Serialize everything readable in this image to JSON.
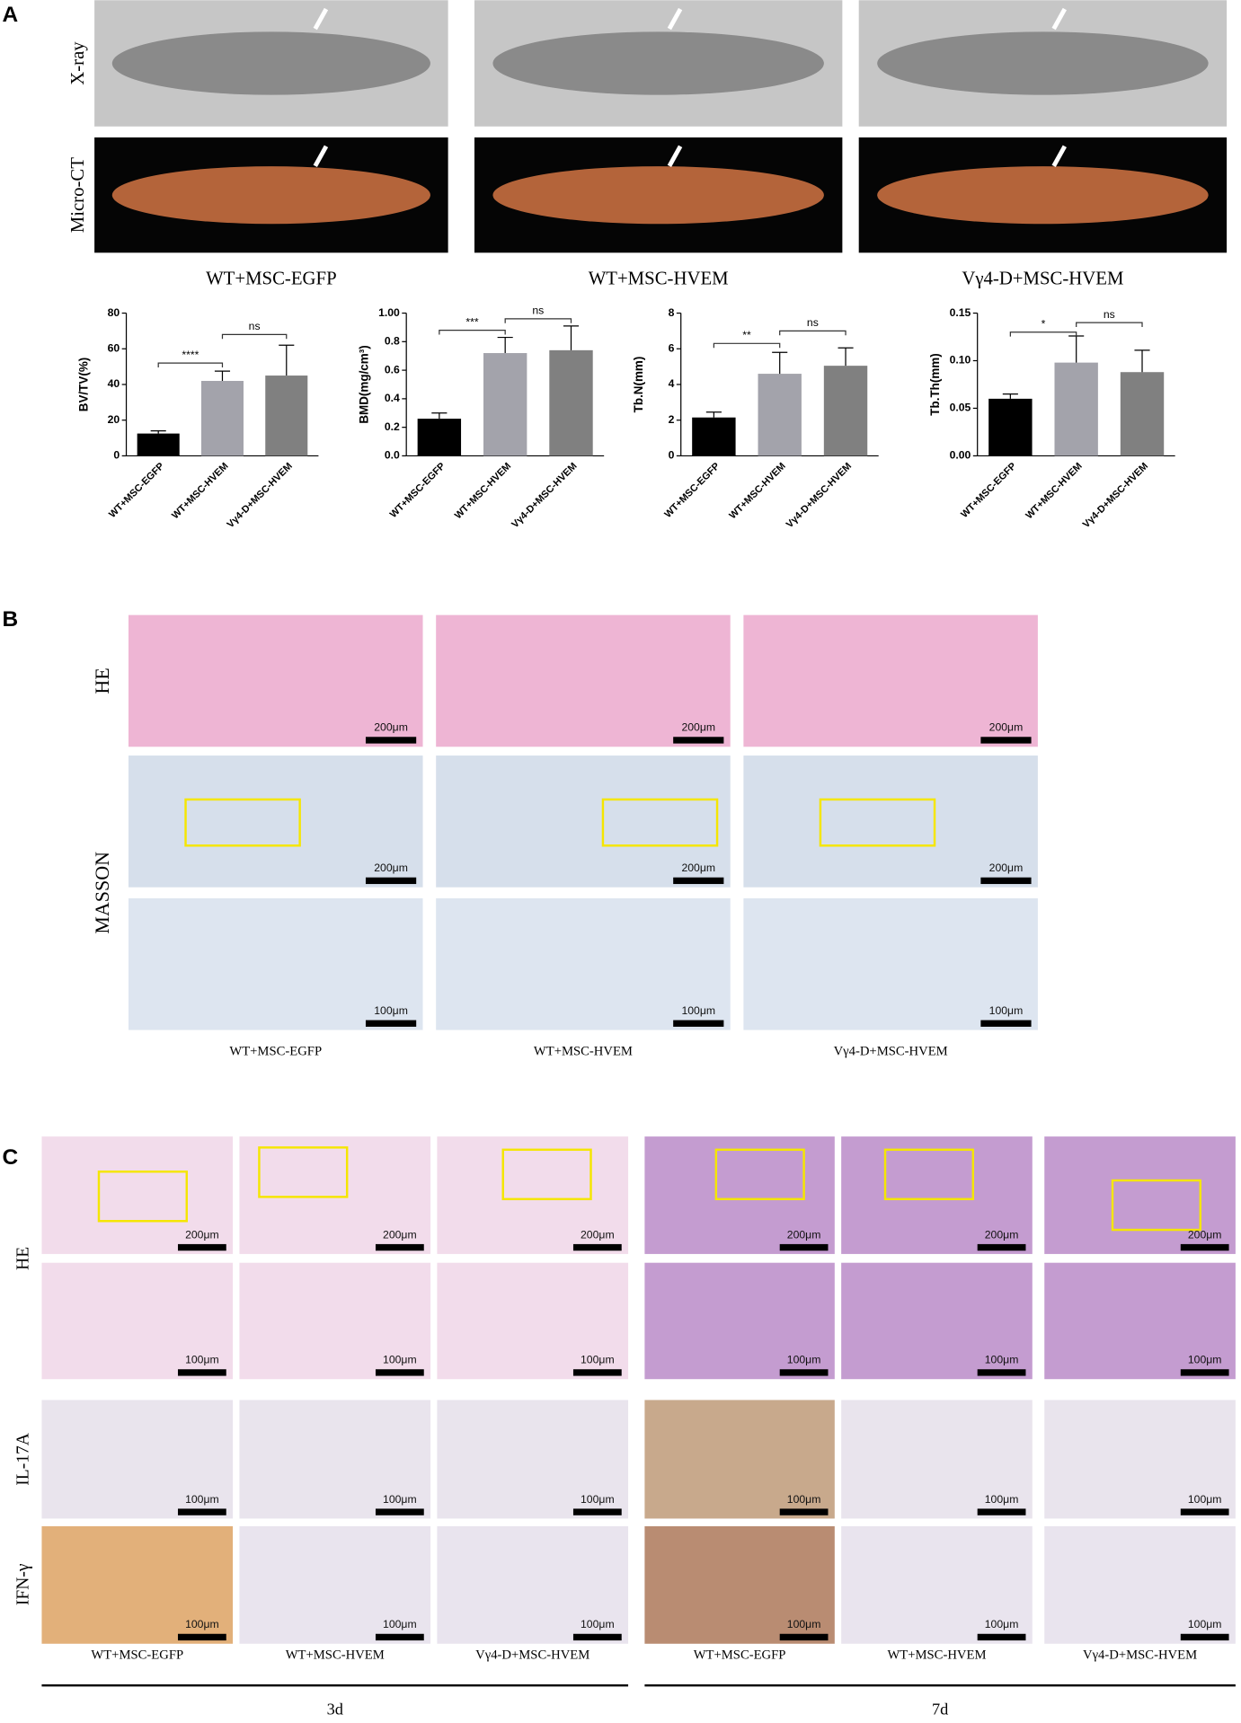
{
  "panel_a": {
    "label": "A",
    "row_labels": [
      "X-ray",
      "Micro-CT"
    ],
    "group_labels": [
      "WT+MSC-EGFP",
      "WT+MSC-HVEM",
      "Vγ4-D+MSC-HVEM"
    ]
  },
  "chart_data": [
    {
      "type": "bar",
      "ylabel": "BV/TV(%)",
      "categories": [
        "WT+MSC-EGFP",
        "WT+MSC-HVEM",
        "Vγ4-D+MSC-HVEM"
      ],
      "colors": [
        "#000000",
        "#a3a3ab",
        "#808080"
      ],
      "values": [
        12.5,
        42,
        45
      ],
      "errors": [
        1.5,
        5.5,
        17
      ],
      "ylim": [
        0,
        80
      ],
      "yticks": [
        0,
        20,
        40,
        60,
        80
      ],
      "significance": [
        {
          "label": "****",
          "from": 0,
          "to": 1,
          "y": 52
        },
        {
          "label": "ns",
          "from": 1,
          "to": 2,
          "y": 68
        }
      ]
    },
    {
      "type": "bar",
      "ylabel": "BMD(mg/cm³)",
      "categories": [
        "WT+MSC-EGFP",
        "WT+MSC-HVEM",
        "Vγ4-D+MSC-HVEM"
      ],
      "colors": [
        "#000000",
        "#a3a3ab",
        "#808080"
      ],
      "values": [
        0.26,
        0.72,
        0.74
      ],
      "errors": [
        0.04,
        0.11,
        0.17
      ],
      "ylim": [
        0,
        1.0
      ],
      "yticks": [
        {
          "value": 0,
          "label": "0.0"
        },
        0.2,
        0.4,
        0.6,
        0.8,
        {
          "value": 1.0,
          "label": "1.00"
        }
      ],
      "significance": [
        {
          "label": "***",
          "from": 0,
          "to": 1,
          "y": 0.88
        },
        {
          "label": "ns",
          "from": 1,
          "to": 2,
          "y": 0.96
        }
      ]
    },
    {
      "type": "bar",
      "ylabel": "Tb.N(mm)",
      "categories": [
        "WT+MSC-EGFP",
        "WT+MSC-HVEM",
        "Vγ4-D+MSC-HVEM"
      ],
      "colors": [
        "#000000",
        "#a3a3ab",
        "#808080"
      ],
      "values": [
        2.15,
        4.6,
        5.05
      ],
      "errors": [
        0.3,
        1.2,
        1.0
      ],
      "ylim": [
        0,
        8
      ],
      "yticks": [
        0,
        2,
        4,
        6,
        8
      ],
      "significance": [
        {
          "label": "**",
          "from": 0,
          "to": 1,
          "y": 6.3
        },
        {
          "label": "ns",
          "from": 1,
          "to": 2,
          "y": 7.0
        }
      ]
    },
    {
      "type": "bar",
      "ylabel": "Tb.Th(mm)",
      "categories": [
        "WT+MSC-EGFP",
        "WT+MSC-HVEM",
        "Vγ4-D+MSC-HVEM"
      ],
      "colors": [
        "#000000",
        "#a3a3ab",
        "#808080"
      ],
      "values": [
        0.06,
        0.098,
        0.088
      ],
      "errors": [
        0.005,
        0.028,
        0.023
      ],
      "ylim": [
        0,
        0.15
      ],
      "yticks": [
        {
          "value": 0,
          "label": "0.00"
        },
        0.05,
        {
          "value": 0.1,
          "label": "0.10"
        },
        0.15
      ],
      "significance": [
        {
          "label": "*",
          "from": 0,
          "to": 1,
          "y": 0.13
        },
        {
          "label": "ns",
          "from": 1,
          "to": 2,
          "y": 0.14
        }
      ]
    }
  ],
  "panel_b": {
    "label": "B",
    "row_labels": [
      "HE",
      "MASSON"
    ],
    "group_labels": [
      "WT+MSC-EGFP",
      "WT+MSC-HVEM",
      "Vγ4-D+MSC-HVEM"
    ],
    "scale_bars": [
      [
        "200μm",
        "200μm",
        "200μm"
      ],
      [
        "200μm",
        "200μm",
        "200μm"
      ],
      [
        "100μm",
        "100μm",
        "100μm"
      ]
    ]
  },
  "panel_c": {
    "label": "C",
    "row_labels": [
      "HE",
      "IL-17A",
      "IFN-γ"
    ],
    "group_labels": [
      "WT+MSC-EGFP",
      "WT+MSC-HVEM",
      "Vγ4-D+MSC-HVEM",
      "WT+MSC-EGFP",
      "WT+MSC-HVEM",
      "Vγ4-D+MSC-HVEM"
    ],
    "scale_bars": [
      [
        "200μm",
        "200μm",
        "200μm",
        "200μm",
        "200μm",
        "200μm"
      ],
      [
        "100μm",
        "100μm",
        "100μm",
        "100μm",
        "100μm",
        "100μm"
      ],
      [
        "100μm",
        "100μm",
        "100μm",
        "100μm",
        "100μm",
        "100μm"
      ],
      [
        "100μm",
        "100μm",
        "100μm",
        "100μm",
        "100μm",
        "100μm"
      ]
    ],
    "time_labels": [
      "3d",
      "7d"
    ]
  }
}
